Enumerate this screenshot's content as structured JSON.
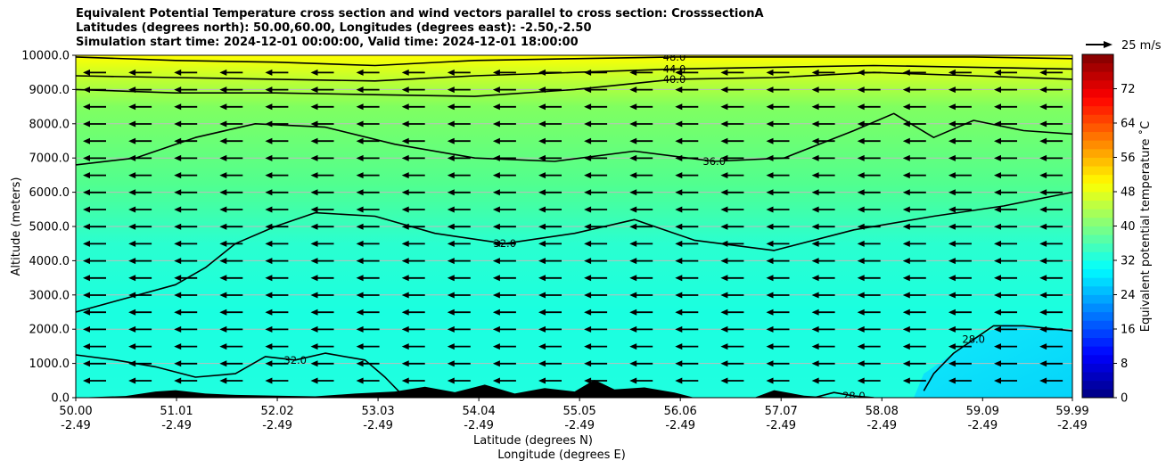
{
  "chart_data": {
    "type": "contour",
    "title_lines": [
      "Equivalent Potential Temperature cross section and wind vectors parallel to cross section: CrosssectionA",
      "Latitudes (degrees north): 50.00,60.00, Longitudes (degrees east): -2.50,-2.50",
      "Simulation start time: 2024-12-01 00:00:00, Valid time: 2024-12-01 18:00:00"
    ],
    "xlabel_lat": "Latitude (degrees N)",
    "xlabel_lon": "Longitude (degrees E)",
    "ylabel": "Altitude (meters)",
    "xlim": [
      50.0,
      59.99
    ],
    "ylim": [
      0,
      10000
    ],
    "x_ticks": [
      {
        "lat": "50.00",
        "lon": "-2.49",
        "v": 50.0
      },
      {
        "lat": "51.01",
        "lon": "-2.49",
        "v": 51.01
      },
      {
        "lat": "52.02",
        "lon": "-2.49",
        "v": 52.02
      },
      {
        "lat": "53.03",
        "lon": "-2.49",
        "v": 53.03
      },
      {
        "lat": "54.04",
        "lon": "-2.49",
        "v": 54.04
      },
      {
        "lat": "55.05",
        "lon": "-2.49",
        "v": 55.05
      },
      {
        "lat": "56.06",
        "lon": "-2.49",
        "v": 56.06
      },
      {
        "lat": "57.07",
        "lon": "-2.49",
        "v": 57.07
      },
      {
        "lat": "58.08",
        "lon": "-2.49",
        "v": 58.08
      },
      {
        "lat": "59.09",
        "lon": "-2.49",
        "v": 59.09
      },
      {
        "lat": "59.99",
        "lon": "-2.49",
        "v": 59.99
      }
    ],
    "y_ticks": [
      {
        "label": "0.0",
        "v": 0
      },
      {
        "label": "1000.0",
        "v": 1000
      },
      {
        "label": "2000.0",
        "v": 2000
      },
      {
        "label": "3000.0",
        "v": 3000
      },
      {
        "label": "4000.0",
        "v": 4000
      },
      {
        "label": "5000.0",
        "v": 5000
      },
      {
        "label": "6000.0",
        "v": 6000
      },
      {
        "label": "7000.0",
        "v": 7000
      },
      {
        "label": "8000.0",
        "v": 8000
      },
      {
        "label": "9000.0",
        "v": 9000
      },
      {
        "label": "10000.0",
        "v": 10000
      }
    ],
    "grid": "horizontal",
    "colorbar": {
      "label": "Equivalent potential temperature ˚C",
      "min": 0,
      "max": 80,
      "ticks": [
        "0",
        "8",
        "16",
        "24",
        "32",
        "40",
        "48",
        "56",
        "64",
        "72"
      ]
    },
    "quiver_key": "25 m/s",
    "wind_u_ms": -9,
    "contours": [
      {
        "level": 28,
        "label": "28.0",
        "points": [
          [
            58.5,
            200
          ],
          [
            58.6,
            700
          ],
          [
            58.8,
            1300
          ],
          [
            59.0,
            1700
          ],
          [
            59.2,
            2100
          ],
          [
            59.5,
            2100
          ],
          [
            59.99,
            1950
          ]
        ]
      },
      {
        "level": 28,
        "label": "28.0",
        "points": [
          [
            57.4,
            0
          ],
          [
            57.6,
            150
          ],
          [
            57.8,
            50
          ],
          [
            58.0,
            0
          ]
        ]
      },
      {
        "level": 32,
        "label": "32.0",
        "points": [
          [
            50.0,
            1250
          ],
          [
            50.4,
            1100
          ],
          [
            50.8,
            900
          ],
          [
            51.2,
            600
          ],
          [
            51.6,
            700
          ],
          [
            51.9,
            1200
          ],
          [
            52.2,
            1100
          ],
          [
            52.5,
            1300
          ],
          [
            52.9,
            1100
          ],
          [
            53.1,
            600
          ],
          [
            53.3,
            0
          ]
        ]
      },
      {
        "level": 32,
        "label": "32.0",
        "points": [
          [
            50.0,
            2500
          ],
          [
            50.5,
            2900
          ],
          [
            51.0,
            3300
          ],
          [
            51.3,
            3800
          ],
          [
            51.6,
            4500
          ],
          [
            52.0,
            5000
          ],
          [
            52.4,
            5400
          ],
          [
            53.0,
            5300
          ],
          [
            53.6,
            4800
          ],
          [
            54.3,
            4500
          ],
          [
            55.0,
            4800
          ],
          [
            55.6,
            5200
          ],
          [
            56.2,
            4600
          ],
          [
            57.0,
            4300
          ],
          [
            57.8,
            4900
          ],
          [
            58.6,
            5300
          ],
          [
            59.3,
            5600
          ],
          [
            59.99,
            6000
          ]
        ]
      },
      {
        "level": 36,
        "label": "36.0",
        "points": [
          [
            50.0,
            6800
          ],
          [
            50.6,
            7000
          ],
          [
            51.2,
            7600
          ],
          [
            51.8,
            8000
          ],
          [
            52.5,
            7900
          ],
          [
            53.2,
            7400
          ],
          [
            54.0,
            7000
          ],
          [
            54.8,
            6900
          ],
          [
            55.6,
            7200
          ],
          [
            56.4,
            6900
          ],
          [
            57.1,
            7000
          ],
          [
            57.8,
            7800
          ],
          [
            58.2,
            8300
          ],
          [
            58.6,
            7600
          ],
          [
            59.0,
            8100
          ],
          [
            59.5,
            7800
          ],
          [
            59.99,
            7700
          ]
        ]
      },
      {
        "level": 40,
        "label": "40.0",
        "points": [
          [
            50.0,
            9000
          ],
          [
            51.0,
            8900
          ],
          [
            52.0,
            8900
          ],
          [
            53.0,
            8850
          ],
          [
            54.0,
            8800
          ],
          [
            55.0,
            9000
          ],
          [
            56.0,
            9300
          ],
          [
            57.0,
            9350
          ],
          [
            58.0,
            9500
          ],
          [
            59.0,
            9400
          ],
          [
            59.99,
            9300
          ]
        ]
      },
      {
        "level": 44,
        "label": "44.0",
        "points": [
          [
            50.0,
            9400
          ],
          [
            51.0,
            9350
          ],
          [
            52.0,
            9300
          ],
          [
            53.0,
            9250
          ],
          [
            54.0,
            9400
          ],
          [
            55.0,
            9500
          ],
          [
            56.0,
            9600
          ],
          [
            57.0,
            9650
          ],
          [
            58.0,
            9700
          ],
          [
            59.0,
            9650
          ],
          [
            59.99,
            9600
          ]
        ]
      },
      {
        "level": 48,
        "label": "48.0",
        "points": [
          [
            50.0,
            9950
          ],
          [
            51.0,
            9850
          ],
          [
            52.0,
            9800
          ],
          [
            53.0,
            9700
          ],
          [
            54.0,
            9850
          ],
          [
            55.0,
            9900
          ],
          [
            56.0,
            9950
          ],
          [
            57.0,
            9950
          ],
          [
            58.0,
            9950
          ],
          [
            59.0,
            9950
          ],
          [
            59.99,
            9900
          ]
        ]
      }
    ],
    "terrain_label": "terrain",
    "terrain_profile": [
      [
        50.0,
        0
      ],
      [
        50.5,
        50
      ],
      [
        50.8,
        180
      ],
      [
        51.0,
        220
      ],
      [
        51.3,
        120
      ],
      [
        51.6,
        80
      ],
      [
        52.0,
        60
      ],
      [
        52.4,
        40
      ],
      [
        52.8,
        120
      ],
      [
        53.2,
        180
      ],
      [
        53.5,
        320
      ],
      [
        53.8,
        160
      ],
      [
        54.1,
        380
      ],
      [
        54.4,
        120
      ],
      [
        54.7,
        280
      ],
      [
        55.0,
        180
      ],
      [
        55.2,
        520
      ],
      [
        55.4,
        240
      ],
      [
        55.7,
        300
      ],
      [
        56.0,
        150
      ],
      [
        56.2,
        0
      ],
      [
        56.8,
        0
      ],
      [
        57.0,
        220
      ],
      [
        57.3,
        60
      ],
      [
        57.6,
        0
      ],
      [
        59.99,
        0
      ]
    ]
  }
}
